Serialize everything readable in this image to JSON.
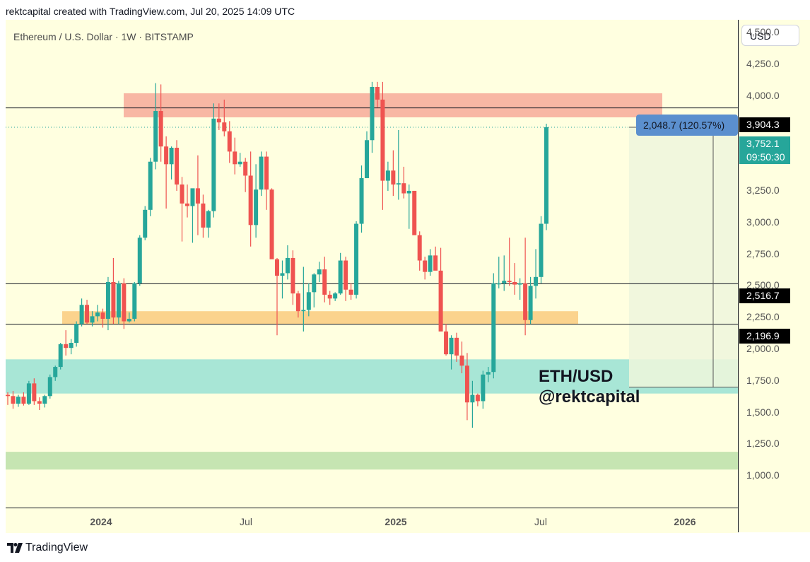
{
  "header": {
    "text": "rektcapital created with TradingView.com, Jul 20, 2025 14:09 UTC"
  },
  "symbol": {
    "text": "Ethereum / U.S. Dollar · 1W · BITSTAMP"
  },
  "currency_button": "USD",
  "watermark": {
    "line1": "ETH/USD",
    "line2": "@rektcapital"
  },
  "footer": {
    "brand": "TradingView",
    "logo_icon": "tradingview-logo-icon"
  },
  "measure_label": "2,048.7 (120.57%)",
  "price_tags": {
    "resistance": "3,904.3",
    "current_price": "3,752.1",
    "countdown": "09:50:30",
    "level_mid": "2,516.7",
    "level_low": "2,196.9"
  },
  "colors": {
    "background": "#ffffe0",
    "up": "#26a69a",
    "down": "#ef5350",
    "resistance_zone": "#f8b7a4",
    "orange_zone": "#fbd38d",
    "teal_zone": "#a8e6d6",
    "green_zone": "#c6e5b2",
    "measure": "#5b8fce"
  },
  "chart_data": {
    "type": "candlestick",
    "title": "Ethereum / U.S. Dollar · 1W · BITSTAMP",
    "ylim": [
      750,
      4600
    ],
    "y_ticks": [
      "1,000.0",
      "1,250.0",
      "1,500.0",
      "1,750.0",
      "2,000.0",
      "2,250.0",
      "2,500.0",
      "2,750.0",
      "3,000.0",
      "3,250.0",
      "3,500.0",
      "3,750.0",
      "4,000.0",
      "4,250.0",
      "4,500.0"
    ],
    "x_ticks": [
      {
        "label": "2024",
        "bold": true
      },
      {
        "label": "Jul",
        "bold": false
      },
      {
        "label": "2025",
        "bold": true
      },
      {
        "label": "Jul",
        "bold": false
      },
      {
        "label": "2026",
        "bold": true
      }
    ],
    "horizontal_lines": [
      3904.3,
      2516.7,
      2196.9
    ],
    "zones": [
      {
        "name": "resistance",
        "from": 3830,
        "to": 4020
      },
      {
        "name": "support-orange",
        "from": 2200,
        "to": 2300
      },
      {
        "name": "support-teal",
        "from": 1650,
        "to": 1920
      },
      {
        "name": "support-green",
        "from": 1050,
        "to": 1190
      }
    ],
    "candles": [
      {
        "o": 1640,
        "h": 1660,
        "l": 1560,
        "c": 1630
      },
      {
        "o": 1630,
        "h": 1670,
        "l": 1530,
        "c": 1570
      },
      {
        "o": 1570,
        "h": 1640,
        "l": 1545,
        "c": 1625
      },
      {
        "o": 1625,
        "h": 1660,
        "l": 1555,
        "c": 1570
      },
      {
        "o": 1570,
        "h": 1750,
        "l": 1560,
        "c": 1730
      },
      {
        "o": 1730,
        "h": 1770,
        "l": 1560,
        "c": 1590
      },
      {
        "o": 1590,
        "h": 1620,
        "l": 1520,
        "c": 1570
      },
      {
        "o": 1570,
        "h": 1640,
        "l": 1540,
        "c": 1630
      },
      {
        "o": 1630,
        "h": 1800,
        "l": 1610,
        "c": 1780
      },
      {
        "o": 1780,
        "h": 1870,
        "l": 1750,
        "c": 1860
      },
      {
        "o": 1860,
        "h": 2050,
        "l": 1840,
        "c": 2040
      },
      {
        "o": 2040,
        "h": 2150,
        "l": 1950,
        "c": 2010
      },
      {
        "o": 2010,
        "h": 2080,
        "l": 1960,
        "c": 2050
      },
      {
        "o": 2050,
        "h": 2220,
        "l": 2020,
        "c": 2200
      },
      {
        "o": 2200,
        "h": 2400,
        "l": 2180,
        "c": 2350
      },
      {
        "o": 2350,
        "h": 2390,
        "l": 2200,
        "c": 2210
      },
      {
        "o": 2210,
        "h": 2300,
        "l": 2180,
        "c": 2260
      },
      {
        "o": 2260,
        "h": 2350,
        "l": 2220,
        "c": 2290
      },
      {
        "o": 2290,
        "h": 2320,
        "l": 2170,
        "c": 2240
      },
      {
        "o": 2240,
        "h": 2570,
        "l": 2150,
        "c": 2530
      },
      {
        "o": 2530,
        "h": 2720,
        "l": 2200,
        "c": 2250
      },
      {
        "o": 2250,
        "h": 2540,
        "l": 2200,
        "c": 2520
      },
      {
        "o": 2520,
        "h": 2560,
        "l": 2160,
        "c": 2220
      },
      {
        "o": 2220,
        "h": 2290,
        "l": 2210,
        "c": 2240
      },
      {
        "o": 2240,
        "h": 2530,
        "l": 2220,
        "c": 2520
      },
      {
        "o": 2520,
        "h": 2900,
        "l": 2500,
        "c": 2880
      },
      {
        "o": 2880,
        "h": 3130,
        "l": 2860,
        "c": 3100
      },
      {
        "o": 3100,
        "h": 3510,
        "l": 3050,
        "c": 3480
      },
      {
        "o": 3480,
        "h": 4100,
        "l": 3420,
        "c": 3880
      },
      {
        "o": 3880,
        "h": 4090,
        "l": 3480,
        "c": 3600
      },
      {
        "o": 3600,
        "h": 3680,
        "l": 3110,
        "c": 3460
      },
      {
        "o": 3460,
        "h": 3600,
        "l": 3340,
        "c": 3590
      },
      {
        "o": 3590,
        "h": 3650,
        "l": 3250,
        "c": 3300
      },
      {
        "o": 3300,
        "h": 3360,
        "l": 2850,
        "c": 3150
      },
      {
        "o": 3150,
        "h": 3300,
        "l": 3040,
        "c": 3130
      },
      {
        "o": 3130,
        "h": 3250,
        "l": 2840,
        "c": 3270
      },
      {
        "o": 3270,
        "h": 3530,
        "l": 2900,
        "c": 3150
      },
      {
        "o": 3150,
        "h": 3220,
        "l": 2880,
        "c": 2960
      },
      {
        "o": 2960,
        "h": 3100,
        "l": 2880,
        "c": 3090
      },
      {
        "o": 3090,
        "h": 3940,
        "l": 3040,
        "c": 3820
      },
      {
        "o": 3820,
        "h": 3940,
        "l": 3730,
        "c": 3790
      },
      {
        "o": 3790,
        "h": 3970,
        "l": 3680,
        "c": 3720
      },
      {
        "o": 3720,
        "h": 3800,
        "l": 3470,
        "c": 3560
      },
      {
        "o": 3560,
        "h": 3670,
        "l": 3380,
        "c": 3460
      },
      {
        "o": 3460,
        "h": 3550,
        "l": 3440,
        "c": 3480
      },
      {
        "o": 3480,
        "h": 3510,
        "l": 3240,
        "c": 3370
      },
      {
        "o": 3370,
        "h": 3560,
        "l": 2810,
        "c": 2980
      },
      {
        "o": 2980,
        "h": 3460,
        "l": 2880,
        "c": 3260
      },
      {
        "o": 3260,
        "h": 3560,
        "l": 3210,
        "c": 3520
      },
      {
        "o": 3520,
        "h": 3560,
        "l": 3100,
        "c": 3260
      },
      {
        "o": 3260,
        "h": 3270,
        "l": 2720,
        "c": 2710
      },
      {
        "o": 2710,
        "h": 2720,
        "l": 2110,
        "c": 2580
      },
      {
        "o": 2580,
        "h": 2700,
        "l": 2400,
        "c": 2600
      },
      {
        "o": 2600,
        "h": 2820,
        "l": 2550,
        "c": 2720
      },
      {
        "o": 2720,
        "h": 2780,
        "l": 2350,
        "c": 2440
      },
      {
        "o": 2440,
        "h": 2460,
        "l": 2250,
        "c": 2300
      },
      {
        "o": 2300,
        "h": 2650,
        "l": 2140,
        "c": 2310
      },
      {
        "o": 2310,
        "h": 2520,
        "l": 2260,
        "c": 2450
      },
      {
        "o": 2450,
        "h": 2600,
        "l": 2330,
        "c": 2590
      },
      {
        "o": 2590,
        "h": 2690,
        "l": 2530,
        "c": 2630
      },
      {
        "o": 2630,
        "h": 2730,
        "l": 2370,
        "c": 2430
      },
      {
        "o": 2430,
        "h": 2460,
        "l": 2350,
        "c": 2400
      },
      {
        "o": 2400,
        "h": 2450,
        "l": 2380,
        "c": 2440
      },
      {
        "o": 2440,
        "h": 2760,
        "l": 2430,
        "c": 2700
      },
      {
        "o": 2700,
        "h": 2730,
        "l": 2380,
        "c": 2470
      },
      {
        "o": 2470,
        "h": 2520,
        "l": 2390,
        "c": 2430
      },
      {
        "o": 2430,
        "h": 3010,
        "l": 2400,
        "c": 2990
      },
      {
        "o": 2990,
        "h": 3450,
        "l": 2920,
        "c": 3350
      },
      {
        "o": 3350,
        "h": 3720,
        "l": 3350,
        "c": 3650
      },
      {
        "o": 3650,
        "h": 4110,
        "l": 3550,
        "c": 4070
      },
      {
        "o": 4070,
        "h": 4110,
        "l": 3910,
        "c": 3970
      },
      {
        "o": 3970,
        "h": 4110,
        "l": 3100,
        "c": 3330
      },
      {
        "o": 3330,
        "h": 3480,
        "l": 3250,
        "c": 3410
      },
      {
        "o": 3410,
        "h": 3570,
        "l": 3210,
        "c": 3300
      },
      {
        "o": 3300,
        "h": 3730,
        "l": 3180,
        "c": 3310
      },
      {
        "o": 3310,
        "h": 3440,
        "l": 3190,
        "c": 3230
      },
      {
        "o": 3230,
        "h": 3300,
        "l": 2950,
        "c": 3250
      },
      {
        "o": 3250,
        "h": 3230,
        "l": 2920,
        "c": 2900
      },
      {
        "o": 2900,
        "h": 2930,
        "l": 2620,
        "c": 2700
      },
      {
        "o": 2700,
        "h": 2730,
        "l": 2550,
        "c": 2610
      },
      {
        "o": 2610,
        "h": 2790,
        "l": 2580,
        "c": 2740
      },
      {
        "o": 2740,
        "h": 2810,
        "l": 2640,
        "c": 2620
      },
      {
        "o": 2620,
        "h": 2800,
        "l": 2150,
        "c": 2140
      },
      {
        "o": 2140,
        "h": 2200,
        "l": 1950,
        "c": 1960
      },
      {
        "o": 1960,
        "h": 2110,
        "l": 1840,
        "c": 2090
      },
      {
        "o": 2090,
        "h": 2130,
        "l": 1900,
        "c": 1950
      },
      {
        "o": 1950,
        "h": 2060,
        "l": 1810,
        "c": 1870
      },
      {
        "o": 1870,
        "h": 1970,
        "l": 1440,
        "c": 1580
      },
      {
        "o": 1580,
        "h": 1750,
        "l": 1380,
        "c": 1640
      },
      {
        "o": 1640,
        "h": 1650,
        "l": 1550,
        "c": 1590
      },
      {
        "o": 1590,
        "h": 1830,
        "l": 1530,
        "c": 1800
      },
      {
        "o": 1800,
        "h": 1860,
        "l": 1740,
        "c": 1820
      },
      {
        "o": 1820,
        "h": 2600,
        "l": 1770,
        "c": 2520
      },
      {
        "o": 2520,
        "h": 2730,
        "l": 2480,
        "c": 2520
      },
      {
        "o": 2520,
        "h": 2740,
        "l": 2460,
        "c": 2540
      },
      {
        "o": 2540,
        "h": 2880,
        "l": 2500,
        "c": 2530
      },
      {
        "o": 2530,
        "h": 2680,
        "l": 2430,
        "c": 2510
      },
      {
        "o": 2510,
        "h": 2560,
        "l": 2390,
        "c": 2520
      },
      {
        "o": 2520,
        "h": 2880,
        "l": 2110,
        "c": 2230
      },
      {
        "o": 2230,
        "h": 2570,
        "l": 2200,
        "c": 2500
      },
      {
        "o": 2500,
        "h": 2790,
        "l": 2400,
        "c": 2570
      },
      {
        "o": 2570,
        "h": 3050,
        "l": 2520,
        "c": 2990
      },
      {
        "o": 2990,
        "h": 3780,
        "l": 2940,
        "c": 3752
      }
    ]
  }
}
